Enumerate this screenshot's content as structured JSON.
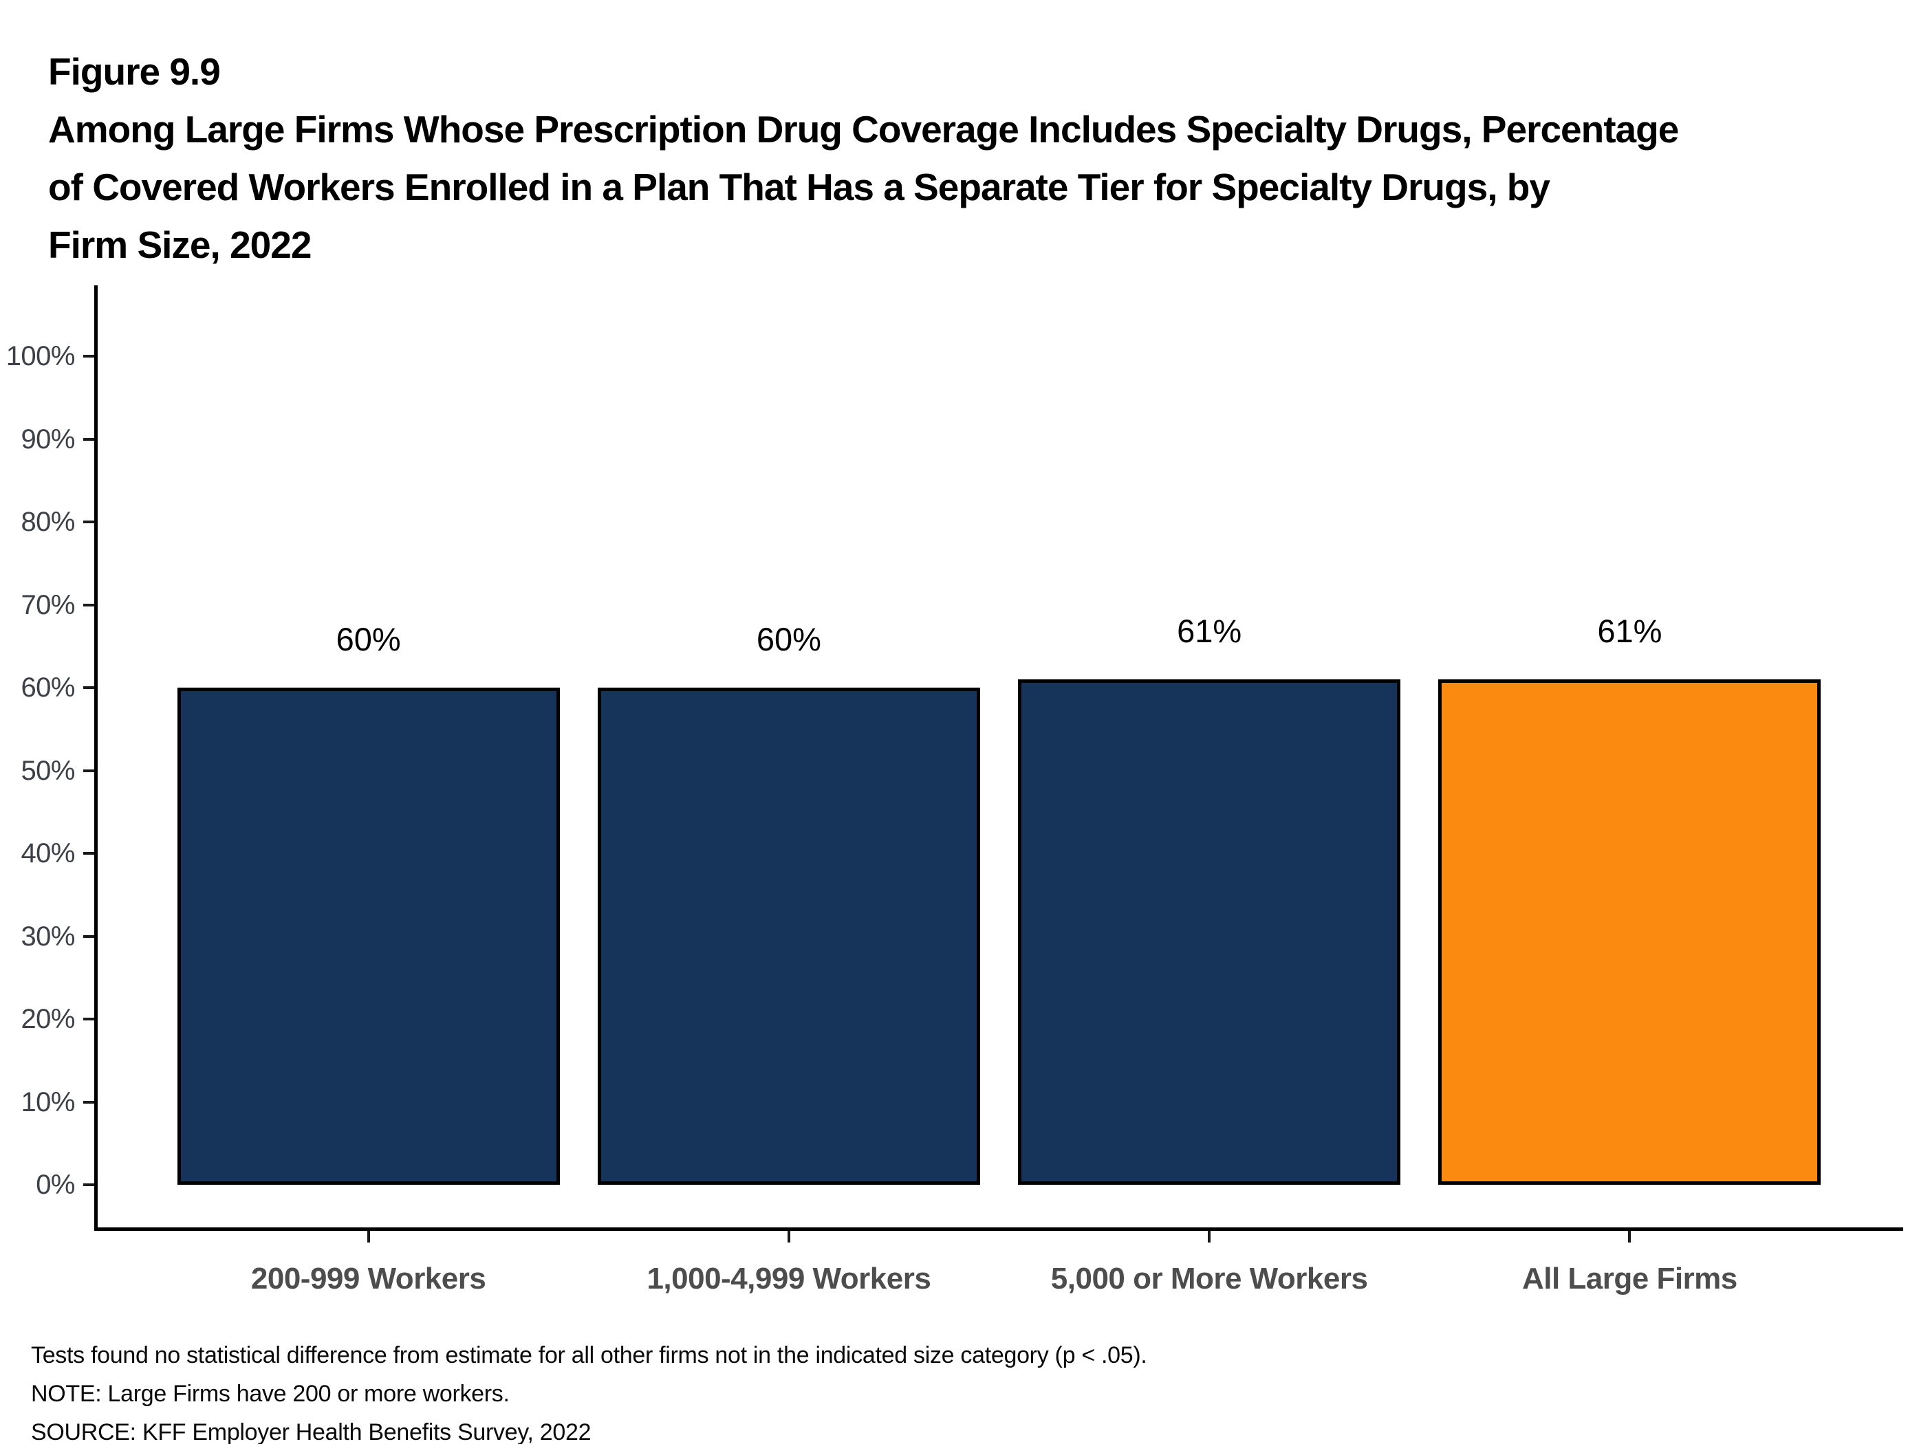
{
  "header": {
    "figure_label": "Figure 9.9",
    "title_lines": [
      "Among Large Firms Whose Prescription Drug Coverage Includes Specialty Drugs, Percentage",
      "of Covered Workers Enrolled in a Plan That Has a Separate Tier for Specialty Drugs, by",
      "Firm Size, 2022"
    ]
  },
  "chart_data": {
    "type": "bar",
    "title": "Among Large Firms Whose Prescription Drug Coverage Includes Specialty Drugs, Percentage of Covered Workers Enrolled in a Plan That Has a Separate Tier for Specialty Drugs, by Firm Size, 2022",
    "categories": [
      "200-999 Workers",
      "1,000-4,999 Workers",
      "5,000 or More Workers",
      "All Large Firms"
    ],
    "values": [
      60,
      60,
      61,
      61
    ],
    "value_labels": [
      "60%",
      "60%",
      "61%",
      "61%"
    ],
    "bar_colors": [
      "#16345A",
      "#16345A",
      "#16345A",
      "#FB8A10"
    ],
    "bar_border_color": "#000000",
    "xlabel": "",
    "ylabel": "",
    "ylim": [
      0,
      100
    ],
    "ytick_labels": [
      "0%",
      "10%",
      "20%",
      "30%",
      "40%",
      "50%",
      "60%",
      "70%",
      "80%",
      "90%",
      "100%"
    ],
    "grid": "off",
    "legend": "none",
    "axis_color": "#000000",
    "tick_label_color": "#3d4147",
    "category_label_color": "#4d4d4d"
  },
  "footnotes": {
    "stats": "Tests found no statistical difference from estimate for all other firms not in the indicated size category (p < .05).",
    "note": "NOTE: Large Firms have 200 or more workers.",
    "source": "SOURCE: KFF Employer Health Benefits Survey, 2022"
  }
}
